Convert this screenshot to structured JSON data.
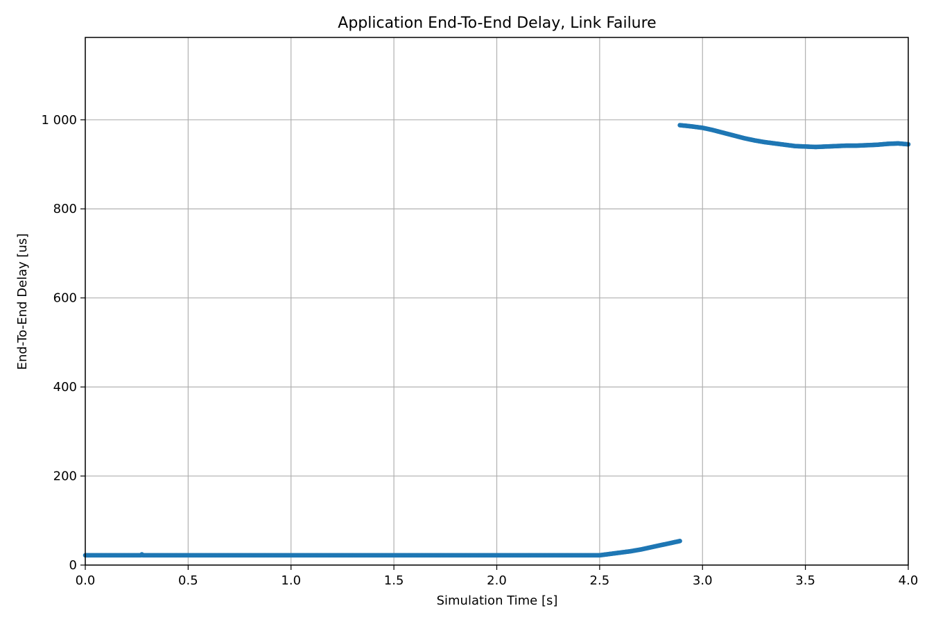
{
  "chart_data": {
    "type": "scatter",
    "title": "Application End-To-End Delay, Link Failure",
    "xlabel": "Simulation Time [s]",
    "ylabel": "End-To-End Delay [us]",
    "xlim": [
      0,
      4
    ],
    "ylim": [
      0,
      1185
    ],
    "xticks": [
      0.0,
      0.5,
      1.0,
      1.5,
      2.0,
      2.5,
      3.0,
      3.5,
      4.0
    ],
    "xtick_labels": [
      "0.0",
      "0.5",
      "1.0",
      "1.5",
      "2.0",
      "2.5",
      "3.0",
      "3.5",
      "4.0"
    ],
    "yticks": [
      0,
      200,
      400,
      600,
      800,
      1000
    ],
    "ytick_labels": [
      "0",
      "200",
      "400",
      "600",
      "800",
      "1 000"
    ],
    "grid": true,
    "marker_color": "#1f77b4",
    "series": [
      {
        "segments": [
          [
            [
              0.0,
              22
            ],
            [
              0.27,
              22
            ],
            [
              0.275,
              24
            ],
            [
              0.28,
              22
            ],
            [
              2.0,
              22
            ],
            [
              2.5,
              22
            ],
            [
              2.55,
              25
            ],
            [
              2.6,
              28
            ],
            [
              2.65,
              31
            ],
            [
              2.7,
              35
            ],
            [
              2.75,
              40
            ],
            [
              2.8,
              45
            ],
            [
              2.85,
              50
            ],
            [
              2.89,
              54
            ]
          ],
          [
            [
              2.89,
              988
            ],
            [
              2.95,
              985
            ],
            [
              3.0,
              982
            ],
            [
              3.05,
              977
            ],
            [
              3.1,
              971
            ],
            [
              3.15,
              965
            ],
            [
              3.2,
              959
            ],
            [
              3.25,
              954
            ],
            [
              3.3,
              950
            ],
            [
              3.35,
              947
            ],
            [
              3.4,
              944
            ],
            [
              3.45,
              941
            ],
            [
              3.5,
              940
            ],
            [
              3.55,
              939
            ],
            [
              3.6,
              940
            ],
            [
              3.65,
              941
            ],
            [
              3.7,
              942
            ],
            [
              3.75,
              942
            ],
            [
              3.8,
              943
            ],
            [
              3.85,
              944
            ],
            [
              3.9,
              946
            ],
            [
              3.95,
              947
            ],
            [
              4.0,
              945
            ]
          ]
        ]
      }
    ]
  }
}
